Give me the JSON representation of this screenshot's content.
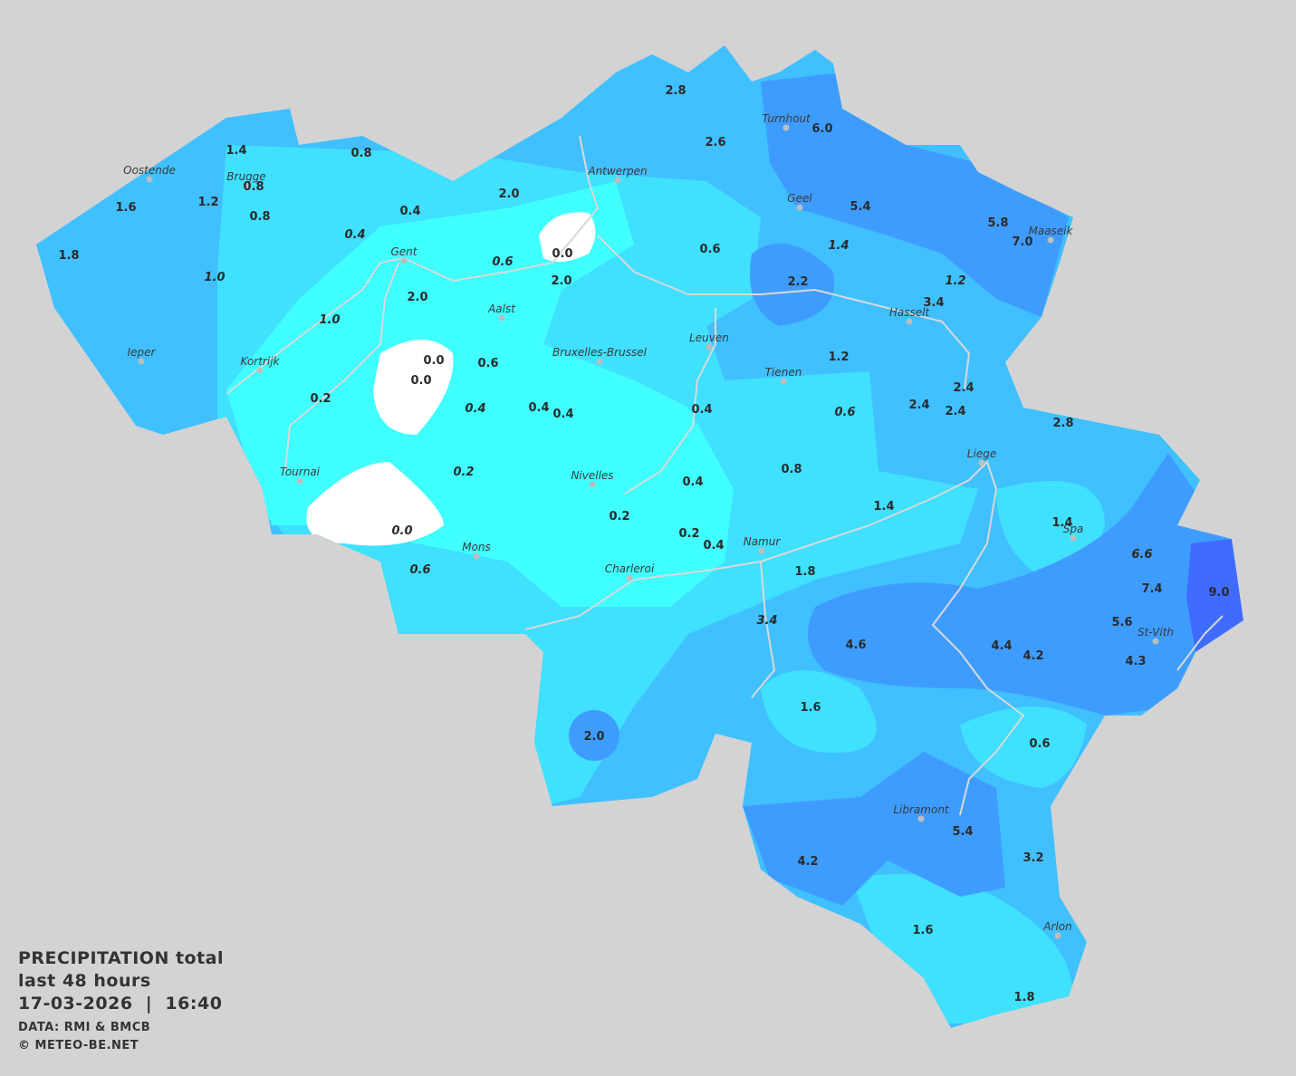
{
  "legend": {
    "title": "PRECIPITATION total",
    "period": "last 48 hours",
    "datetime": "17-03-2026  |  16:40",
    "source": "DATA: RMI & BMCB",
    "copyright": "© METEO-BE.NET"
  },
  "colors": {
    "background": "#d3d3d3",
    "none": "#ffffff",
    "very_light": "#40ffff",
    "light": "#40e0ff",
    "medium": "#40c0ff",
    "heavy": "#3f9cff",
    "very_heavy": "#3f6cff"
  },
  "cities": [
    "Oostende",
    "Brugge",
    "Antwerpen",
    "Turnhout",
    "Geel",
    "Maaseik",
    "Gent",
    "Aalst",
    "Hasselt",
    "Ieper",
    "Kortrijk",
    "Bruxelles-Brussel",
    "Leuven",
    "Tienen",
    "Liege",
    "Tournai",
    "Nivelles",
    "Spa",
    "Mons",
    "Namur",
    "Charleroi",
    "St-Vith",
    "Libramont",
    "Arlon"
  ],
  "stations": [
    {
      "v": "1.4"
    },
    {
      "v": "0.8"
    },
    {
      "v": "1.6"
    },
    {
      "v": "1.2"
    },
    {
      "v": "0.8"
    },
    {
      "v": "0.8"
    },
    {
      "v": "0.4"
    },
    {
      "v": "0.4",
      "italic": true
    },
    {
      "v": "1.8"
    },
    {
      "v": "1.0",
      "italic": true
    },
    {
      "v": "1.0",
      "italic": true
    },
    {
      "v": "2.0"
    },
    {
      "v": "0.6",
      "italic": true
    },
    {
      "v": "2.0"
    },
    {
      "v": "0.0"
    },
    {
      "v": "2.0"
    },
    {
      "v": "2.8"
    },
    {
      "v": "2.6"
    },
    {
      "v": "6.0"
    },
    {
      "v": "5.4"
    },
    {
      "v": "5.8"
    },
    {
      "v": "7.0"
    },
    {
      "v": "0.6"
    },
    {
      "v": "1.4",
      "italic": true
    },
    {
      "v": "1.2",
      "italic": true
    },
    {
      "v": "2.2"
    },
    {
      "v": "3.4"
    },
    {
      "v": "1.2"
    },
    {
      "v": "0.0"
    },
    {
      "v": "0.0"
    },
    {
      "v": "0.6"
    },
    {
      "v": "0.2"
    },
    {
      "v": "0.4",
      "italic": true
    },
    {
      "v": "0.4"
    },
    {
      "v": "0.4"
    },
    {
      "v": "0.4"
    },
    {
      "v": "0.6",
      "italic": true
    },
    {
      "v": "2.4"
    },
    {
      "v": "2.4"
    },
    {
      "v": "2.4"
    },
    {
      "v": "2.8"
    },
    {
      "v": "0.2",
      "italic": true
    },
    {
      "v": "0.8"
    },
    {
      "v": "0.4"
    },
    {
      "v": "0.2"
    },
    {
      "v": "1.4"
    },
    {
      "v": "1.4"
    },
    {
      "v": "0.0",
      "italic": true
    },
    {
      "v": "0.2"
    },
    {
      "v": "0.4"
    },
    {
      "v": "0.6",
      "italic": true
    },
    {
      "v": "1.8"
    },
    {
      "v": "6.6",
      "italic": true
    },
    {
      "v": "7.4"
    },
    {
      "v": "9.0"
    },
    {
      "v": "5.6"
    },
    {
      "v": "3.4",
      "italic": true
    },
    {
      "v": "4.6"
    },
    {
      "v": "4.4"
    },
    {
      "v": "4.2"
    },
    {
      "v": "4.3"
    },
    {
      "v": "1.6"
    },
    {
      "v": "2.0"
    },
    {
      "v": "0.6"
    },
    {
      "v": "5.4"
    },
    {
      "v": "4.2"
    },
    {
      "v": "3.2"
    },
    {
      "v": "1.6"
    },
    {
      "v": "1.8"
    }
  ]
}
